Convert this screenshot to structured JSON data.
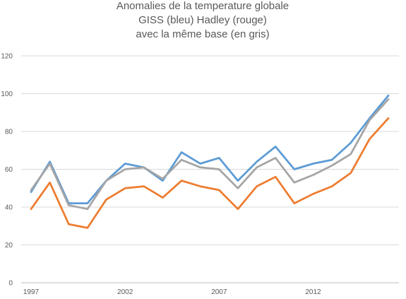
{
  "chart_data": {
    "type": "line",
    "title_lines": [
      "Anomalies de la  temperature globale",
      "GISS (bleu) Hadley (rouge)",
      "avec la même base (en gris)"
    ],
    "xlabel": "",
    "ylabel": "",
    "x": [
      1997,
      1998,
      1999,
      2000,
      2001,
      2002,
      2003,
      2004,
      2005,
      2006,
      2007,
      2008,
      2009,
      2010,
      2011,
      2012,
      2013,
      2014,
      2015,
      2016
    ],
    "x_tick_labels": [
      "1997",
      "2002",
      "2007",
      "2012"
    ],
    "y_ticks": [
      0,
      20,
      40,
      60,
      80,
      100,
      120
    ],
    "ylim": [
      0,
      120
    ],
    "grid": true,
    "legend": "none",
    "series": [
      {
        "color": "#5b9bd5",
        "values": [
          48,
          64,
          42,
          42,
          54,
          63,
          61,
          54,
          69,
          63,
          66,
          54,
          64,
          72,
          60,
          63,
          65,
          74,
          87,
          99
        ]
      },
      {
        "color": "#a5a5a5",
        "values": [
          49,
          63,
          41,
          39,
          54,
          60,
          61,
          55,
          65,
          61,
          60,
          50,
          61,
          66,
          53,
          57,
          62,
          68,
          86,
          97
        ]
      },
      {
        "color": "#ed7d31",
        "values": [
          39,
          53,
          31,
          29,
          44,
          50,
          51,
          45,
          54,
          51,
          49,
          39,
          51,
          56,
          42,
          47,
          51,
          58,
          76,
          87
        ]
      }
    ]
  }
}
